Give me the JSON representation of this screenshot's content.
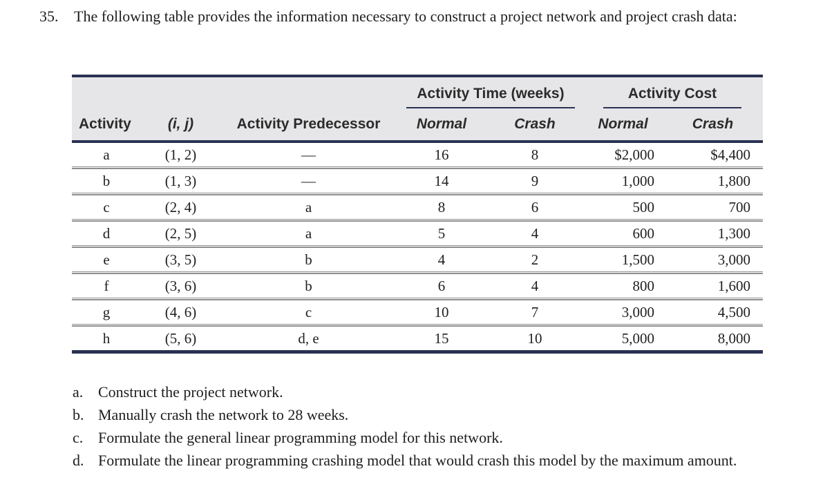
{
  "problem": {
    "number": "35.",
    "text": "The following table provides the information necessary to construct a project network and project crash data:"
  },
  "table": {
    "group_headers": [
      {
        "label": "Activity Time (weeks)"
      },
      {
        "label": "Activity Cost"
      }
    ],
    "columns": [
      "Activity",
      "(i, j)",
      "Activity Predecessor",
      "Normal",
      "Crash",
      "Normal",
      "Crash"
    ],
    "rows": [
      [
        "a",
        "(1, 2)",
        "—",
        "16",
        "8",
        "$2,000",
        "$4,400"
      ],
      [
        "b",
        "(1, 3)",
        "—",
        "14",
        "9",
        "1,000",
        "1,800"
      ],
      [
        "c",
        "(2, 4)",
        "a",
        "8",
        "6",
        "500",
        "700"
      ],
      [
        "d",
        "(2, 5)",
        "a",
        "5",
        "4",
        "600",
        "1,300"
      ],
      [
        "e",
        "(3, 5)",
        "b",
        "4",
        "2",
        "1,500",
        "3,000"
      ],
      [
        "f",
        "(3, 6)",
        "b",
        "6",
        "4",
        "800",
        "1,600"
      ],
      [
        "g",
        "(4, 6)",
        "c",
        "10",
        "7",
        "3,000",
        "4,500"
      ],
      [
        "h",
        "(5, 6)",
        "d, e",
        "15",
        "10",
        "5,000",
        "8,000"
      ]
    ]
  },
  "questions": [
    {
      "label": "a.",
      "text": "Construct the project network."
    },
    {
      "label": "b.",
      "text": "Manually crash the network to 28 weeks."
    },
    {
      "label": "c.",
      "text": "Formulate the general linear programming model for this network."
    },
    {
      "label": "d.",
      "text": "Formulate the linear programming crashing model that would crash this model by the maximum amount."
    }
  ],
  "colors": {
    "accent_navy": "#2a3153",
    "header_bg": "#e6e6e8",
    "separator_gray": "#8f8f8f"
  }
}
